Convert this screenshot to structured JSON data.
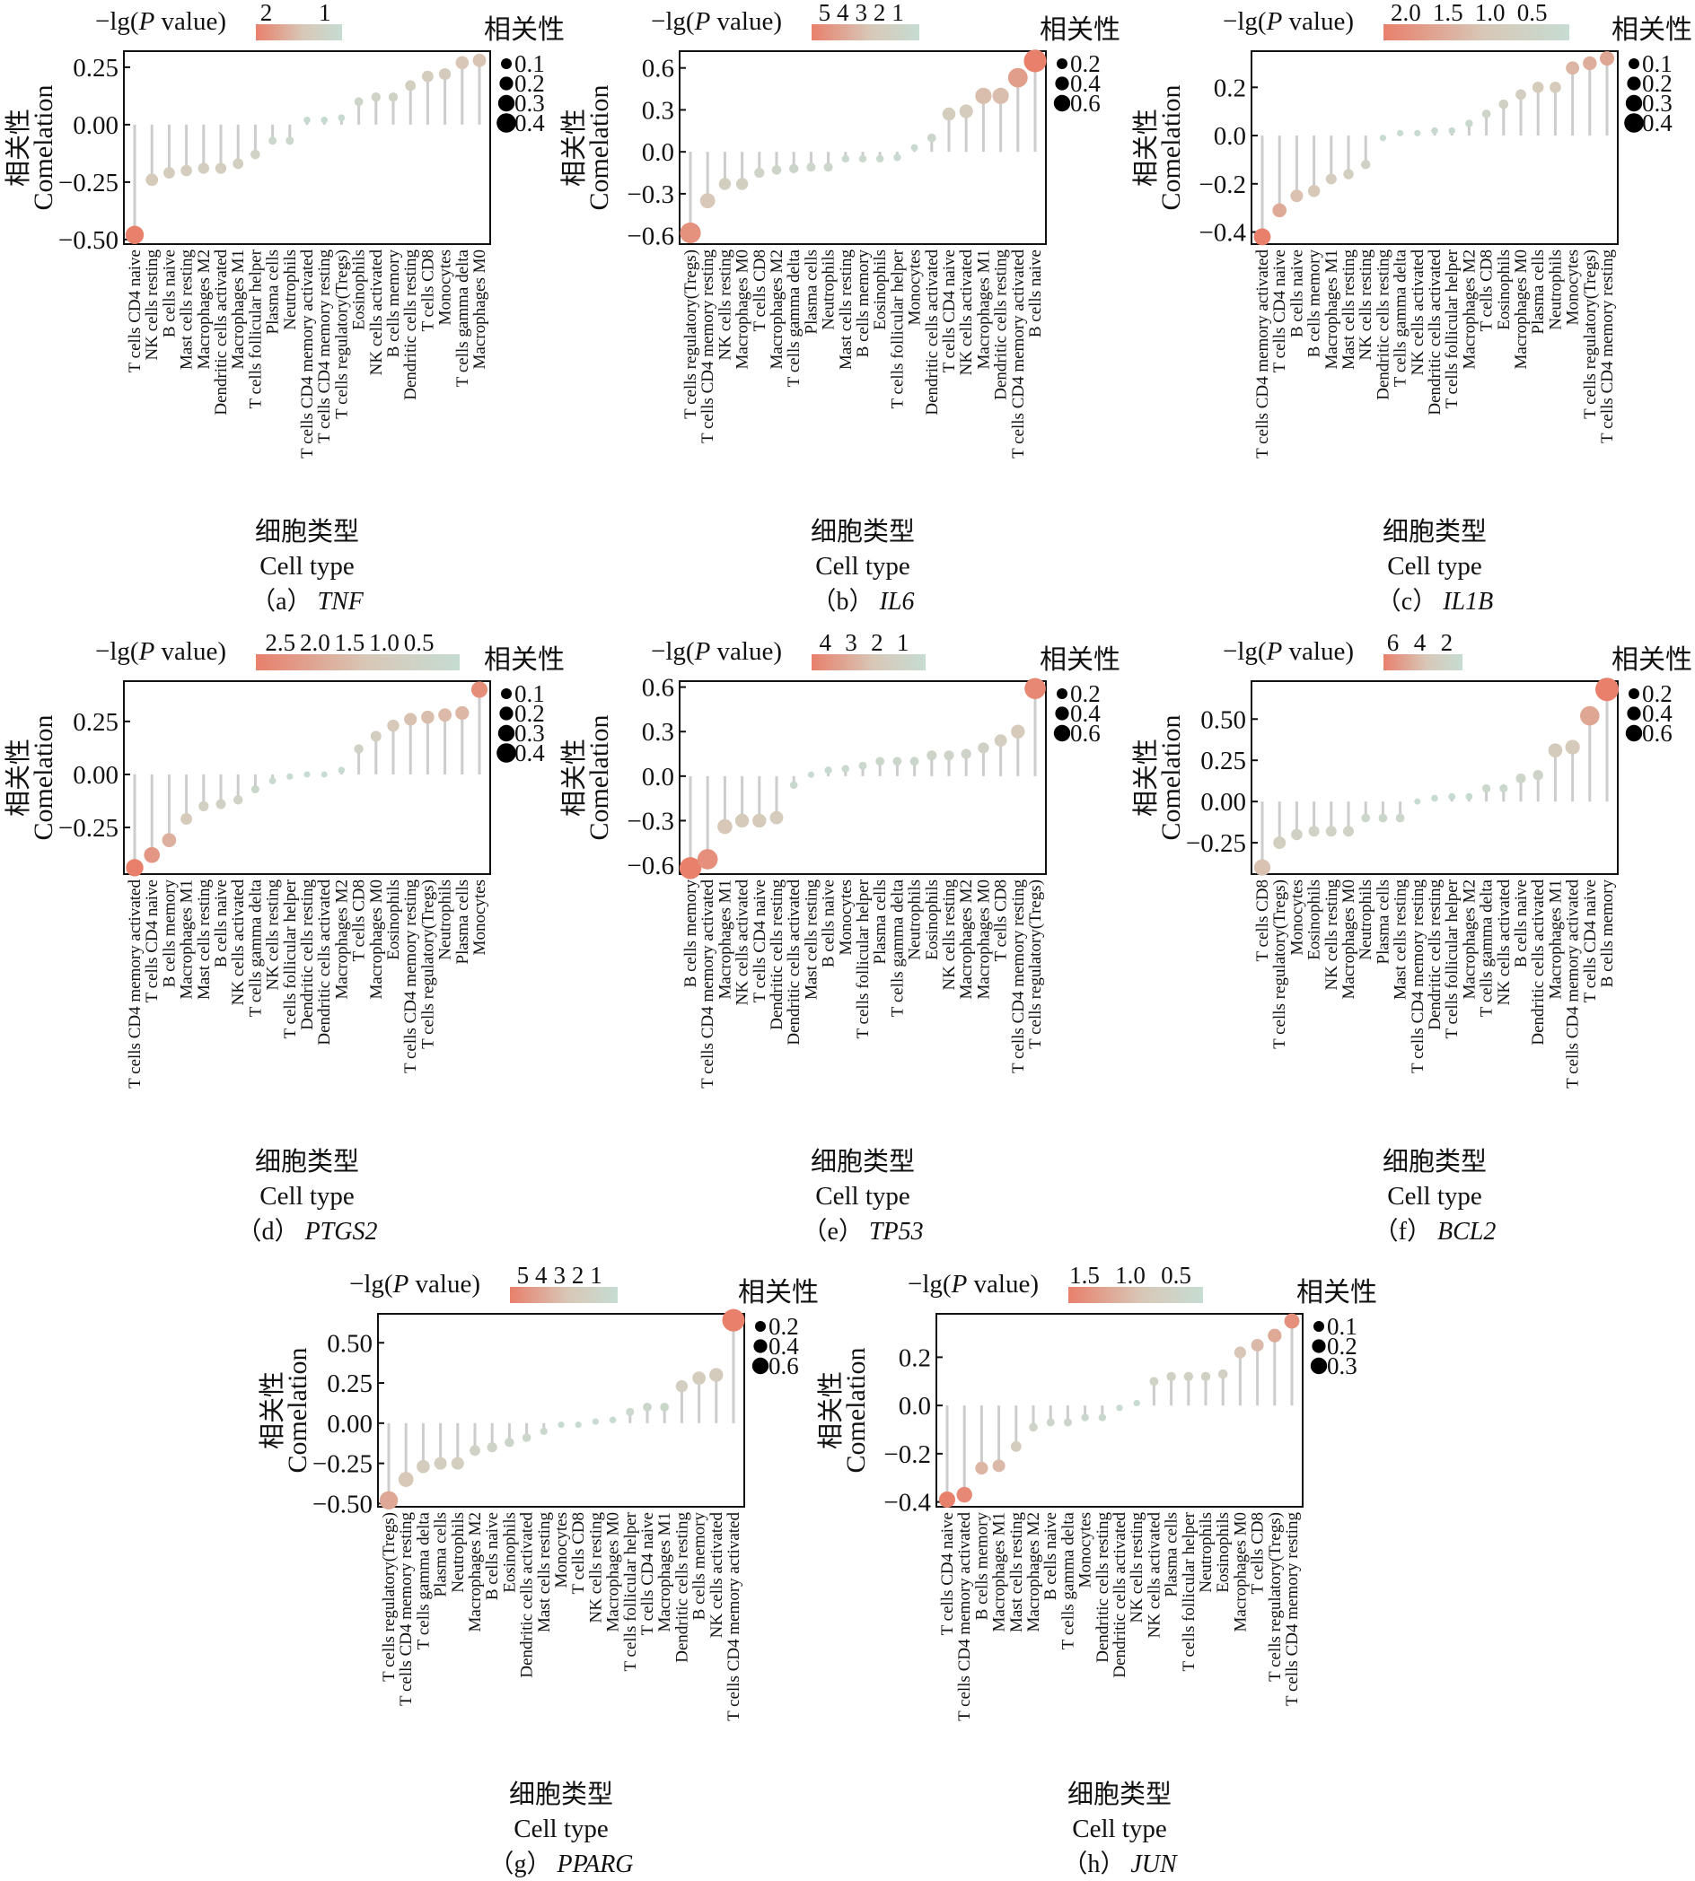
{
  "common": {
    "colorbar_title": {
      "prefix": "−lg(",
      "italic": "P",
      "suffix": " value)"
    },
    "size_legend_title": "相关性",
    "ylabel": [
      "相关性",
      "Comelation"
    ],
    "xlabel": [
      "细胞类型",
      "Cell type"
    ],
    "colors": {
      "high": "#e8806c",
      "mid": "#d8c8b8",
      "low": "#c6dcd2",
      "stem": "#cccccc"
    }
  },
  "chart_data": [
    {
      "id": "a",
      "type": "lollipop",
      "caption_letter": "a",
      "gene": "TNF",
      "ylim": [
        -0.52,
        0.32
      ],
      "yticks": [
        -0.5,
        -0.25,
        0,
        0.25
      ],
      "ytick_labels": [
        "−0.50",
        "−0.25",
        "0.00",
        "0.25"
      ],
      "colorbar_labels": [
        "2",
        "1"
      ],
      "size_legend": [
        "0.1",
        "0.2",
        "0.3",
        "0.4"
      ],
      "categories": [
        "T cells CD4 naive",
        "NK cells resting",
        "B cells naive",
        "Mast cells resting",
        "Macrophages M2",
        "Dendritic cells activated",
        "Macrophages M1",
        "T cells follicular helper",
        "Plasma cells",
        "Neutrophils",
        "T cells CD4 memory activated",
        "T cells CD4 memory resting",
        "T cells regulatory(Tregs)",
        "Eosinophils",
        "NK cells activated",
        "B cells memory",
        "Dendritic cells resting",
        "T cells CD8",
        "Monocytes",
        "T cells gamma delta",
        "Macrophages M0"
      ],
      "values": [
        -0.48,
        -0.24,
        -0.21,
        -0.2,
        -0.19,
        -0.19,
        -0.17,
        -0.13,
        -0.07,
        -0.07,
        0.02,
        0.02,
        0.03,
        0.1,
        0.12,
        0.12,
        0.17,
        0.21,
        0.22,
        0.27,
        0.28
      ]
    },
    {
      "id": "b",
      "type": "lollipop",
      "caption_letter": "b",
      "gene": "IL6",
      "ylim": [
        -0.66,
        0.72
      ],
      "yticks": [
        -0.6,
        -0.3,
        0,
        0.3,
        0.6
      ],
      "ytick_labels": [
        "−0.6",
        "−0.3",
        "0.0",
        "0.3",
        "0.6"
      ],
      "colorbar_labels": [
        "5",
        "4",
        "3",
        "2",
        "1"
      ],
      "size_legend": [
        "0.2",
        "0.4",
        "0.6"
      ],
      "categories": [
        "T cells regulatory(Tregs)",
        "T cells CD4 memory resting",
        "NK cells resting",
        "Macrophages M0",
        "T cells CD8",
        "Macrophages M2",
        "T cells gamma delta",
        "Plasma cells",
        "Neutrophils",
        "Mast cells resting",
        "B cells memory",
        "Eosinophils",
        "T cells follicular helper",
        "Monocytes",
        "Dendritic cells activated",
        "T cells CD4 naive",
        "NK cells activated",
        "Macrophages M1",
        "Dendritic cells resting",
        "T cells CD4 memory activated",
        "B cells naive"
      ],
      "values": [
        -0.58,
        -0.35,
        -0.23,
        -0.23,
        -0.15,
        -0.13,
        -0.12,
        -0.11,
        -0.11,
        -0.05,
        -0.05,
        -0.05,
        -0.04,
        0.03,
        0.1,
        0.27,
        0.29,
        0.4,
        0.4,
        0.53,
        0.65
      ]
    },
    {
      "id": "c",
      "type": "lollipop",
      "caption_letter": "c",
      "gene": "IL1B",
      "ylim": [
        -0.45,
        0.35
      ],
      "yticks": [
        -0.4,
        -0.2,
        0,
        0.2
      ],
      "ytick_labels": [
        "−0.4",
        "−0.2",
        "0.0",
        "0.2"
      ],
      "colorbar_labels": [
        "2.0",
        "1.5",
        "1.0",
        "0.5"
      ],
      "size_legend": [
        "0.1",
        "0.2",
        "0.3",
        "0.4"
      ],
      "categories": [
        "T cells CD4 memory activated",
        "T cells CD4 naive",
        "B cells naive",
        "B cells memory",
        "Macrophages M1",
        "Mast cells resting",
        "NK cells resting",
        "Dendritic cells resting",
        "T cells gamma delta",
        "NK cells activated",
        "Dendritic cells activated",
        "T cells follicular helper",
        "Macrophages M2",
        "T cells CD8",
        "Eosinophils",
        "Macrophages M0",
        "Plasma cells",
        "Neutrophils",
        "Monocytes",
        "T cells regulatory(Tregs)",
        "T cells CD4 memory resting"
      ],
      "values": [
        -0.42,
        -0.31,
        -0.25,
        -0.23,
        -0.18,
        -0.16,
        -0.12,
        -0.01,
        0.01,
        0.01,
        0.02,
        0.02,
        0.05,
        0.09,
        0.13,
        0.17,
        0.2,
        0.2,
        0.28,
        0.3,
        0.32
      ]
    },
    {
      "id": "d",
      "type": "lollipop",
      "caption_letter": "d",
      "gene": "PTGS2",
      "ylim": [
        -0.47,
        0.44
      ],
      "yticks": [
        -0.25,
        0,
        0.25
      ],
      "ytick_labels": [
        "−0.25",
        "0.00",
        "0.25"
      ],
      "colorbar_labels": [
        "2.5",
        "2.0",
        "1.5",
        "1.0",
        "0.5"
      ],
      "size_legend": [
        "0.1",
        "0.2",
        "0.3",
        "0.4"
      ],
      "categories": [
        "T cells CD4 memory activated",
        "T cells CD4 naive",
        "B cells memory",
        "Macrophages M1",
        "Mast cells resting",
        "B cells naive",
        "NK cells activated",
        "T cells gamma delta",
        "NK cells resting",
        "T cells follicular helper",
        "Dendritic cells resting",
        "Dendritic cells activated",
        "Macrophages M2",
        "T cells CD8",
        "Macrophages M0",
        "Eosinophils",
        "T cells CD4 memory resting",
        "T cells regulatory(Tregs)",
        "Neutrophils",
        "Plasma cells",
        "Monocytes"
      ],
      "values": [
        -0.44,
        -0.38,
        -0.31,
        -0.21,
        -0.15,
        -0.14,
        -0.12,
        -0.07,
        -0.03,
        -0.01,
        0.0,
        0.0,
        0.02,
        0.12,
        0.18,
        0.23,
        0.26,
        0.27,
        0.28,
        0.29,
        0.4
      ]
    },
    {
      "id": "e",
      "type": "lollipop",
      "caption_letter": "e",
      "gene": "TP53",
      "ylim": [
        -0.66,
        0.64
      ],
      "yticks": [
        -0.6,
        -0.3,
        0,
        0.3,
        0.6
      ],
      "ytick_labels": [
        "−0.6",
        "−0.3",
        "0.0",
        "0.3",
        "0.6"
      ],
      "colorbar_labels": [
        "4",
        "3",
        "2",
        "1"
      ],
      "size_legend": [
        "0.2",
        "0.4",
        "0.6"
      ],
      "categories": [
        "B cells memory",
        "T cells CD4 memory activated",
        "Macrophages M1",
        "NK cells activated",
        "T cells CD4 naive",
        "Dendritic cells resting",
        "Dendritic cells activated",
        "Mast cells resting",
        "B cells naive",
        "Monocytes",
        "T cells follicular helper",
        "Plasma cells",
        "T cells gamma delta",
        "Neutrophils",
        "Eosinophils",
        "NK cells resting",
        "Macrophages M2",
        "Macrophages M0",
        "T cells CD8",
        "T cells CD4 memory resting",
        "T cells regulatory(Tregs)"
      ],
      "values": [
        -0.62,
        -0.56,
        -0.34,
        -0.3,
        -0.3,
        -0.28,
        -0.06,
        0.01,
        0.04,
        0.05,
        0.07,
        0.1,
        0.1,
        0.1,
        0.14,
        0.14,
        0.15,
        0.19,
        0.24,
        0.3,
        0.59
      ]
    },
    {
      "id": "f",
      "type": "lollipop",
      "caption_letter": "f",
      "gene": "BCL2",
      "ylim": [
        -0.44,
        0.73
      ],
      "yticks": [
        -0.25,
        0,
        0.25,
        0.5
      ],
      "ytick_labels": [
        "−0.25",
        "0.00",
        "0.25",
        "0.50"
      ],
      "colorbar_labels": [
        "6",
        "4",
        "2"
      ],
      "size_legend": [
        "0.2",
        "0.4",
        "0.6"
      ],
      "categories": [
        "T cells CD8",
        "T cells regulatory(Tregs)",
        "Monocytes",
        "Eosinophils",
        "NK cells resting",
        "Macrophages M0",
        "Neutrophils",
        "Plasma cells",
        "Mast cells resting",
        "T cells CD4 memory resting",
        "Dendritic cells resting",
        "T cells follicular helper",
        "Macrophages M2",
        "T cells gamma delta",
        "NK cells activated",
        "B cells naive",
        "Dendritic cells activated",
        "Macrophages M1",
        "T cells CD4 memory activated",
        "T cells CD4 naive",
        "B cells memory"
      ],
      "values": [
        -0.4,
        -0.25,
        -0.2,
        -0.18,
        -0.18,
        -0.18,
        -0.1,
        -0.1,
        -0.1,
        0.0,
        0.02,
        0.03,
        0.03,
        0.08,
        0.08,
        0.14,
        0.16,
        0.31,
        0.33,
        0.52,
        0.68
      ]
    },
    {
      "id": "g",
      "type": "lollipop",
      "caption_letter": "g",
      "gene": "PPARG",
      "ylim": [
        -0.52,
        0.68
      ],
      "yticks": [
        -0.5,
        -0.25,
        0,
        0.25,
        0.5
      ],
      "ytick_labels": [
        "−0.50",
        "−0.25",
        "0.00",
        "0.25",
        "0.50"
      ],
      "colorbar_labels": [
        "5",
        "4",
        "3",
        "2",
        "1"
      ],
      "size_legend": [
        "0.2",
        "0.4",
        "0.6"
      ],
      "categories": [
        "T cells regulatory(Tregs)",
        "T cells CD4 memory resting",
        "T cells gamma delta",
        "Plasma cells",
        "Neutrophils",
        "Macrophages M2",
        "B cells naive",
        "Eosinophils",
        "Dendritic cells activated",
        "Mast cells resting",
        "Monocytes",
        "T cells CD8",
        "NK cells resting",
        "Macrophages M0",
        "T cells follicular helper",
        "T cells CD4 naive",
        "Macrophages M1",
        "Dendritic cells resting",
        "B cells memory",
        "NK cells activated",
        "T cells CD4 memory activated"
      ],
      "values": [
        -0.48,
        -0.35,
        -0.27,
        -0.25,
        -0.25,
        -0.17,
        -0.15,
        -0.12,
        -0.09,
        -0.05,
        -0.01,
        -0.01,
        0.01,
        0.02,
        0.07,
        0.1,
        0.1,
        0.23,
        0.28,
        0.3,
        0.64
      ]
    },
    {
      "id": "h",
      "type": "lollipop",
      "caption_letter": "h",
      "gene": "JUN",
      "ylim": [
        -0.42,
        0.38
      ],
      "yticks": [
        -0.4,
        -0.2,
        0,
        0.2
      ],
      "ytick_labels": [
        "−0.4",
        "−0.2",
        "0.0",
        "0.2"
      ],
      "colorbar_labels": [
        "1.5",
        "1.0",
        "0.5"
      ],
      "size_legend": [
        "0.1",
        "0.2",
        "0.3"
      ],
      "categories": [
        "T cells CD4 naive",
        "T cells CD4 memory activated",
        "B cells memory",
        "Macrophages M1",
        "Mast cells resting",
        "Macrophages M2",
        "B cells naive",
        "T cells gamma delta",
        "Monocytes",
        "Dendritic cells resting",
        "Dendritic cells activated",
        "NK cells resting",
        "NK cells activated",
        "Plasma cells",
        "T cells follicular helper",
        "Neutrophils",
        "Eosinophils",
        "Macrophages M0",
        "T cells CD8",
        "T cells regulatory(Tregs)",
        "T cells CD4 memory resting"
      ],
      "values": [
        -0.39,
        -0.37,
        -0.26,
        -0.25,
        -0.17,
        -0.09,
        -0.07,
        -0.07,
        -0.05,
        -0.05,
        -0.01,
        0.01,
        0.1,
        0.12,
        0.12,
        0.12,
        0.13,
        0.22,
        0.25,
        0.29,
        0.35
      ]
    }
  ]
}
